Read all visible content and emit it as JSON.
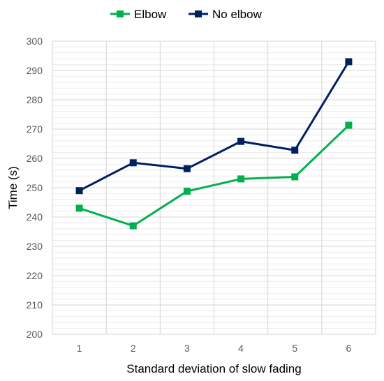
{
  "chart_data": {
    "type": "line",
    "title": "",
    "xlabel": "Standard deviation of slow fading",
    "ylabel": "Time (s)",
    "x": [
      1,
      2,
      3,
      4,
      5,
      6
    ],
    "x_tick_labels": [
      "1",
      "2",
      "3",
      "4",
      "5",
      "6"
    ],
    "ylim": [
      200,
      300
    ],
    "y_tick_labels": [
      "200",
      "210",
      "220",
      "230",
      "240",
      "250",
      "260",
      "270",
      "280",
      "290",
      "300"
    ],
    "grid": true,
    "legend_position": "top-center",
    "series": [
      {
        "name": "Elbow",
        "color": "#00B050",
        "marker": "square",
        "values": [
          243,
          237,
          248.8,
          253,
          253.7,
          271.3
        ]
      },
      {
        "name": "No elbow",
        "color": "#002060",
        "marker": "square",
        "values": [
          249,
          258.5,
          256.5,
          265.8,
          262.8,
          293
        ]
      }
    ]
  }
}
